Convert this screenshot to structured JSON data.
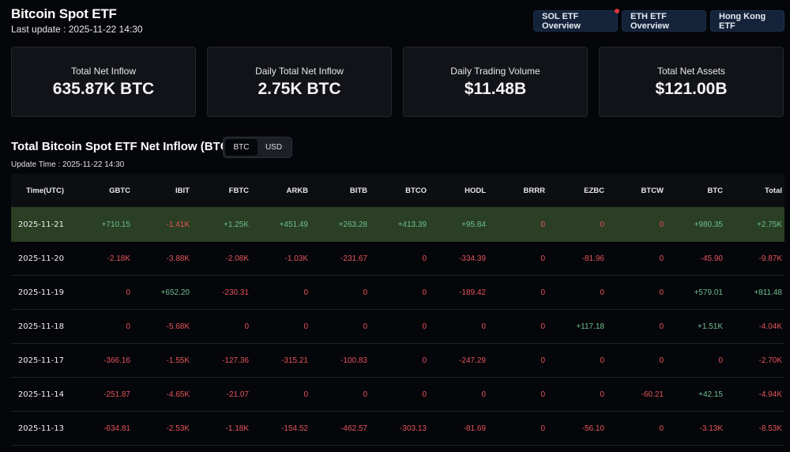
{
  "header": {
    "title": "Bitcoin Spot ETF",
    "last_update": "Last update : 2025-11-22 14:30",
    "nav": [
      {
        "label": "SOL ETF Overview",
        "notification": true
      },
      {
        "label": "ETH ETF Overview",
        "notification": false
      },
      {
        "label": "Hong Kong ETF",
        "notification": false
      }
    ]
  },
  "stats": [
    {
      "label": "Total Net Inflow",
      "value": "635.87K BTC"
    },
    {
      "label": "Daily Total Net Inflow",
      "value": "2.75K BTC"
    },
    {
      "label": "Daily Trading Volume",
      "value": "$11.48B"
    },
    {
      "label": "Total Net Assets",
      "value": "$121.00B"
    }
  ],
  "section": {
    "title": "Total Bitcoin Spot ETF Net Inflow (BTC)",
    "toggle": [
      {
        "label": "BTC",
        "active": true
      },
      {
        "label": "USD",
        "active": false
      }
    ],
    "update_time": "Update Time : 2025-11-22 14:30"
  },
  "colors": {
    "positive": "#6dbf8e",
    "negative": "#e5555b",
    "highlight_row": "#2a3f23",
    "button_bg": "#14233a"
  },
  "table": {
    "columns": [
      "Time(UTC)",
      "GBTC",
      "IBIT",
      "FBTC",
      "ARKB",
      "BITB",
      "BTCO",
      "HODL",
      "BRRR",
      "EZBC",
      "BTCW",
      "BTC",
      "Total"
    ],
    "rows": [
      {
        "date": "2025-11-21",
        "highlight": true,
        "values": [
          "+710.15",
          "-1.41K",
          "+1.25K",
          "+451.49",
          "+263.28",
          "+413.39",
          "+95.84",
          "0",
          "0",
          "0",
          "+980.35",
          "+2.75K"
        ]
      },
      {
        "date": "2025-11-20",
        "highlight": false,
        "values": [
          "-2.18K",
          "-3.88K",
          "-2.08K",
          "-1.03K",
          "-231.67",
          "0",
          "-334.39",
          "0",
          "-81.96",
          "0",
          "-45.90",
          "-9.87K"
        ]
      },
      {
        "date": "2025-11-19",
        "highlight": false,
        "values": [
          "0",
          "+652.20",
          "-230.31",
          "0",
          "0",
          "0",
          "-189.42",
          "0",
          "0",
          "0",
          "+579.01",
          "+811.48"
        ]
      },
      {
        "date": "2025-11-18",
        "highlight": false,
        "values": [
          "0",
          "-5.68K",
          "0",
          "0",
          "0",
          "0",
          "0",
          "0",
          "+117.18",
          "0",
          "+1.51K",
          "-4.04K"
        ]
      },
      {
        "date": "2025-11-17",
        "highlight": false,
        "values": [
          "-366.16",
          "-1.55K",
          "-127.36",
          "-315.21",
          "-100.83",
          "0",
          "-247.29",
          "0",
          "0",
          "0",
          "0",
          "-2.70K"
        ]
      },
      {
        "date": "2025-11-14",
        "highlight": false,
        "values": [
          "-251.87",
          "-4.65K",
          "-21.07",
          "0",
          "0",
          "0",
          "0",
          "0",
          "0",
          "-60.21",
          "+42.15",
          "-4.94K"
        ]
      },
      {
        "date": "2025-11-13",
        "highlight": false,
        "values": [
          "-634.81",
          "-2.53K",
          "-1.18K",
          "-154.52",
          "-462.57",
          "-303.13",
          "-81.69",
          "0",
          "-56.10",
          "0",
          "-3.13K",
          "-8.53K"
        ]
      }
    ]
  }
}
